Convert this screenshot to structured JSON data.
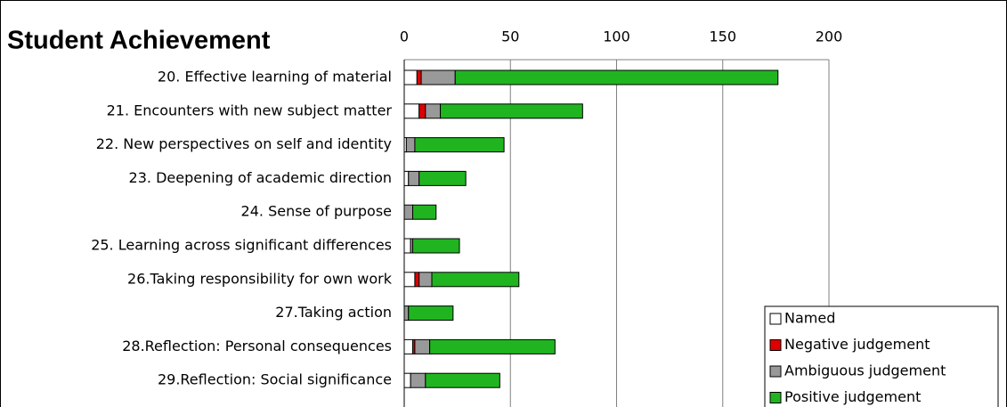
{
  "chart_data": {
    "type": "bar",
    "orientation": "horizontal",
    "stacked": true,
    "title": "Student Achievement",
    "categories": [
      "20. Effective learning of material",
      "21. Encounters with new subject matter",
      "22. New perspectives on self and identity",
      "23. Deepening of academic direction",
      "24. Sense of purpose",
      "25. Learning across significant differences",
      "26.Taking responsibility for own work",
      "27.Taking action",
      "28.Reflection: Personal consequences",
      "29.Reflection: Social significance"
    ],
    "series": [
      {
        "name": "Named",
        "color": "#ffffff",
        "values": [
          6,
          7,
          1,
          2,
          0,
          3,
          5,
          0,
          4,
          3
        ]
      },
      {
        "name": "Negative judgement",
        "color": "#e00000",
        "values": [
          2,
          3,
          0,
          0,
          0,
          0,
          2,
          0,
          1,
          0
        ]
      },
      {
        "name": "Ambiguous judgement",
        "color": "#999999",
        "values": [
          16,
          7,
          4,
          5,
          4,
          1,
          6,
          2,
          7,
          7
        ]
      },
      {
        "name": "Positive judgement",
        "color": "#20b520",
        "values": [
          152,
          67,
          42,
          22,
          11,
          22,
          41,
          21,
          59,
          35
        ]
      }
    ],
    "xlim": [
      0,
      200
    ],
    "xticks": [
      0,
      50,
      100,
      150,
      200
    ],
    "grid": true,
    "legend": "lower right"
  }
}
